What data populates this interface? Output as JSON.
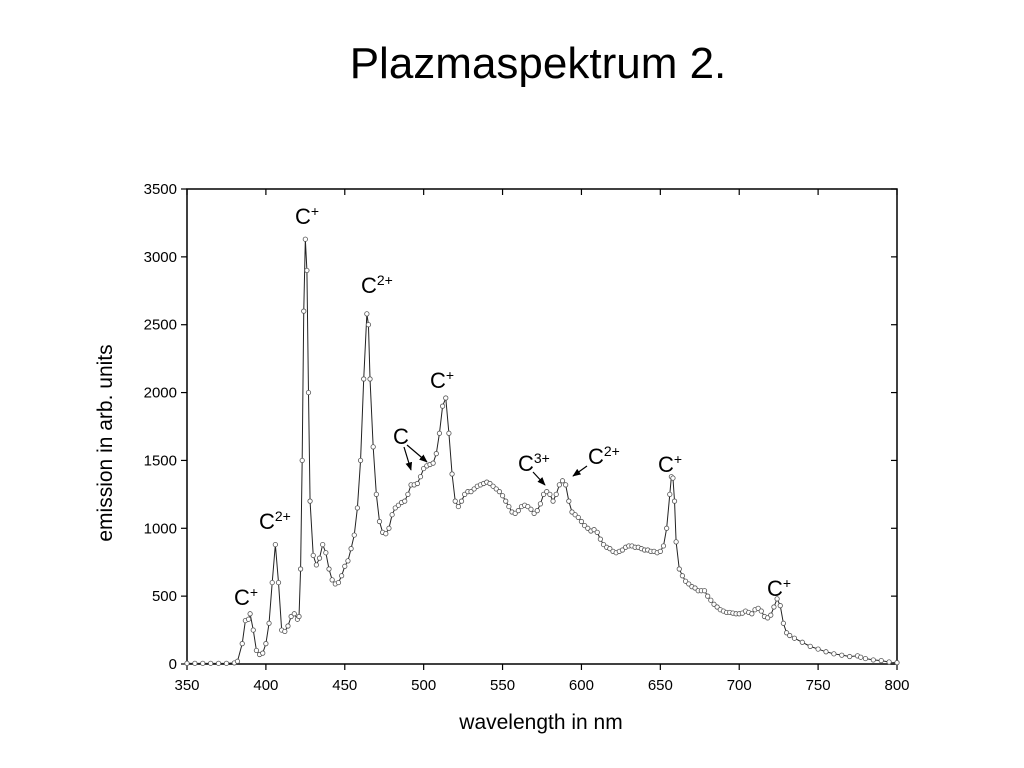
{
  "chart_data": {
    "type": "line",
    "title": "Plazmaspektrum 2.",
    "x_label": "wavelength in nm",
    "y_label": "emission in arb. units",
    "xlim": [
      350,
      800
    ],
    "ylim": [
      0,
      3500
    ],
    "xticks": [
      350,
      400,
      450,
      500,
      550,
      600,
      650,
      700,
      750,
      800
    ],
    "yticks": [
      0,
      500,
      1000,
      1500,
      2000,
      2500,
      3000,
      3500
    ],
    "grid": false,
    "series": [
      {
        "color": "#555555",
        "x": [
          350,
          355,
          360,
          365,
          370,
          375,
          380,
          382,
          385,
          387,
          389,
          390,
          392,
          394,
          396,
          398,
          400,
          402,
          404,
          406,
          408,
          410,
          412,
          414,
          416,
          418,
          420,
          421,
          422,
          423,
          424,
          425,
          426,
          427,
          428,
          430,
          432,
          434,
          436,
          438,
          440,
          442,
          444,
          446,
          448,
          450,
          452,
          454,
          456,
          458,
          460,
          462,
          464,
          465,
          466,
          468,
          470,
          472,
          474,
          476,
          478,
          480,
          482,
          484,
          486,
          488,
          490,
          492,
          494,
          496,
          498,
          500,
          502,
          504,
          506,
          508,
          510,
          512,
          514,
          516,
          518,
          520,
          522,
          524,
          526,
          528,
          530,
          532,
          534,
          536,
          538,
          540,
          542,
          544,
          546,
          548,
          550,
          552,
          554,
          556,
          558,
          560,
          562,
          564,
          566,
          568,
          570,
          572,
          574,
          576,
          578,
          580,
          582,
          584,
          586,
          588,
          590,
          592,
          594,
          596,
          598,
          600,
          602,
          604,
          606,
          608,
          610,
          612,
          614,
          616,
          618,
          620,
          622,
          624,
          626,
          628,
          630,
          632,
          634,
          636,
          638,
          640,
          642,
          644,
          646,
          648,
          650,
          652,
          654,
          656,
          657,
          658,
          659,
          660,
          662,
          664,
          666,
          668,
          670,
          672,
          674,
          676,
          678,
          680,
          682,
          684,
          686,
          688,
          690,
          692,
          694,
          696,
          698,
          700,
          702,
          704,
          706,
          708,
          710,
          712,
          714,
          716,
          718,
          720,
          722,
          724,
          726,
          728,
          730,
          732,
          735,
          740,
          745,
          750,
          755,
          760,
          765,
          770,
          775,
          777,
          780,
          785,
          790,
          795,
          800
        ],
        "values": [
          5,
          5,
          5,
          5,
          5,
          5,
          8,
          20,
          150,
          320,
          330,
          370,
          250,
          100,
          70,
          80,
          150,
          300,
          600,
          880,
          600,
          250,
          240,
          280,
          350,
          370,
          330,
          350,
          700,
          1500,
          2600,
          3130,
          2900,
          2000,
          1200,
          800,
          730,
          780,
          880,
          820,
          700,
          620,
          590,
          600,
          650,
          720,
          760,
          850,
          950,
          1150,
          1500,
          2100,
          2580,
          2500,
          2100,
          1600,
          1250,
          1050,
          970,
          960,
          1000,
          1100,
          1150,
          1170,
          1190,
          1200,
          1250,
          1320,
          1320,
          1330,
          1380,
          1440,
          1460,
          1470,
          1480,
          1550,
          1700,
          1900,
          1960,
          1700,
          1400,
          1200,
          1160,
          1200,
          1250,
          1270,
          1270,
          1290,
          1310,
          1320,
          1330,
          1340,
          1330,
          1310,
          1290,
          1270,
          1240,
          1200,
          1160,
          1120,
          1110,
          1130,
          1160,
          1170,
          1160,
          1140,
          1110,
          1130,
          1180,
          1250,
          1270,
          1250,
          1200,
          1250,
          1320,
          1350,
          1320,
          1200,
          1120,
          1100,
          1080,
          1050,
          1020,
          1000,
          980,
          990,
          970,
          920,
          880,
          860,
          850,
          830,
          820,
          830,
          840,
          860,
          870,
          870,
          860,
          860,
          850,
          840,
          840,
          830,
          830,
          820,
          830,
          870,
          1000,
          1250,
          1380,
          1370,
          1200,
          900,
          700,
          650,
          610,
          590,
          570,
          560,
          540,
          540,
          540,
          500,
          470,
          440,
          420,
          400,
          390,
          380,
          380,
          375,
          370,
          370,
          375,
          390,
          380,
          370,
          400,
          410,
          390,
          350,
          340,
          360,
          420,
          480,
          430,
          300,
          230,
          210,
          190,
          160,
          130,
          110,
          90,
          75,
          65,
          55,
          60,
          50,
          40,
          30,
          25,
          15,
          10
        ]
      }
    ],
    "annotations": [
      {
        "text": "C",
        "sup": "+"
      },
      {
        "text": "C",
        "sup": "2+"
      },
      {
        "text": "C",
        "sup": "+"
      },
      {
        "text": "C"
      },
      {
        "text": "C",
        "sup": "3+"
      },
      {
        "text": "C",
        "sup": "2+"
      },
      {
        "text": "C",
        "sup": "+"
      },
      {
        "text": "C",
        "sup": "2+"
      },
      {
        "text": "C",
        "sup": "+"
      },
      {
        "text": "C",
        "sup": "+"
      }
    ]
  }
}
